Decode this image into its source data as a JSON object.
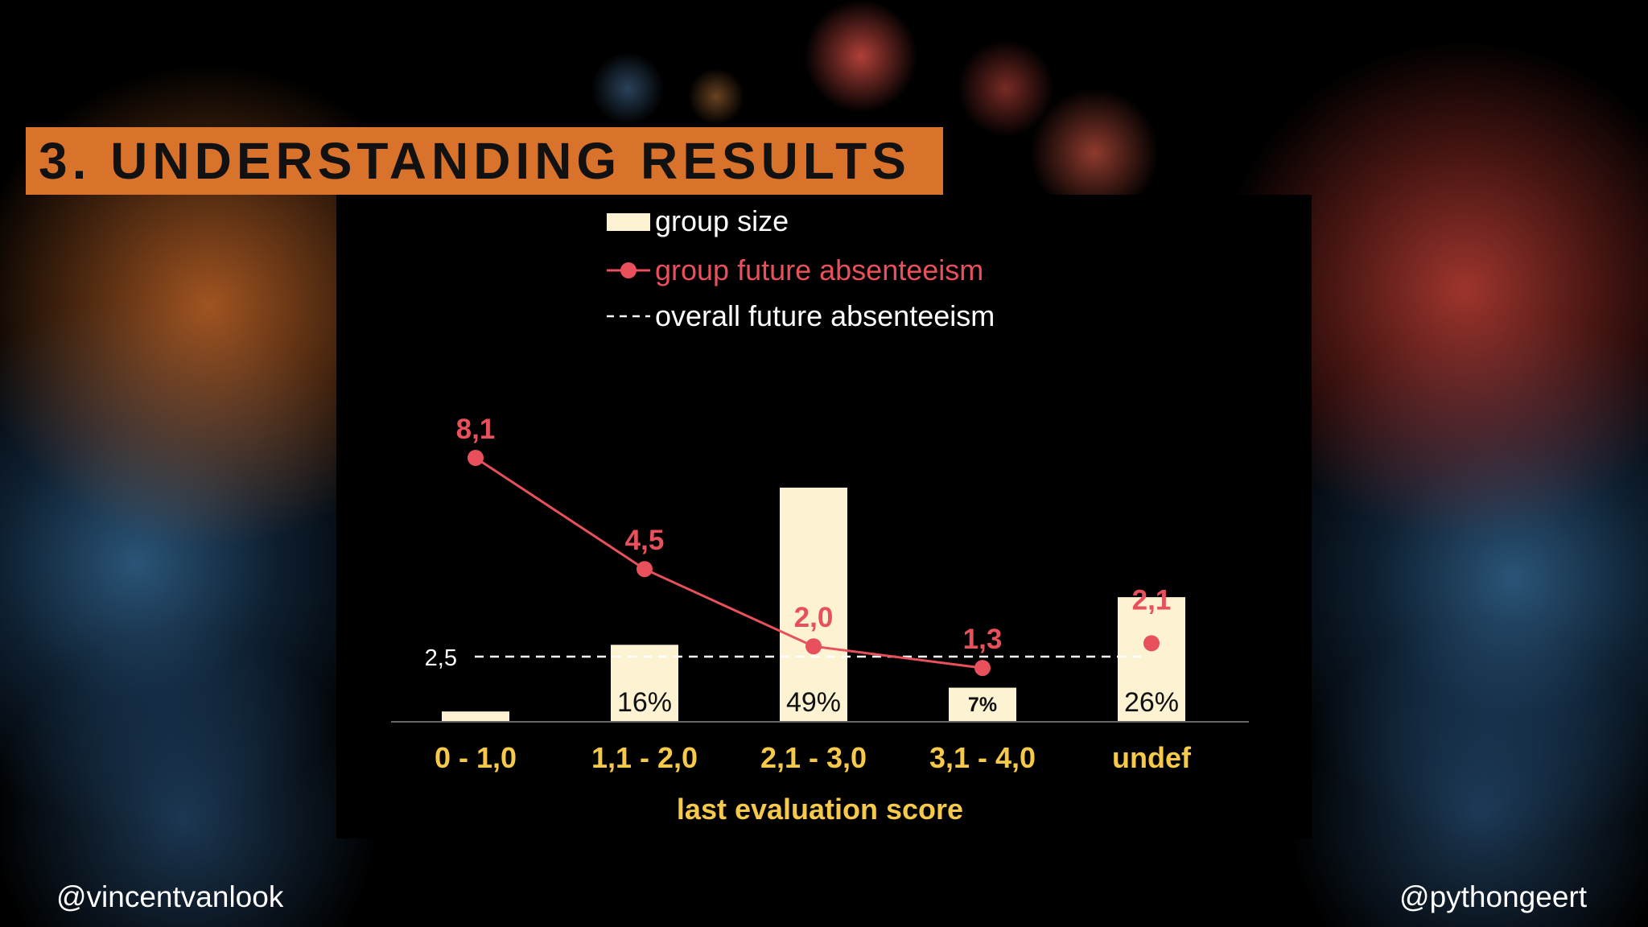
{
  "slide": {
    "title": "3. UNDERSTANDING RESULTS",
    "handle_left": "@vincentvanlook",
    "handle_right": "@pythongeert"
  },
  "colors": {
    "title_bg": "#d9722a",
    "bar": "#fdf3d2",
    "line": "#e8505b",
    "axis_text": "#f6c94a",
    "reference": "#ffffff"
  },
  "chart_data": {
    "type": "bar",
    "xlabel": "last evaluation score",
    "categories": [
      "0 - 1,0",
      "1,1 - 2,0",
      "2,1 - 3,0",
      "3,1 - 4,0",
      "undef"
    ],
    "series": [
      {
        "name": "group size",
        "type": "bar",
        "values": [
          0.02,
          0.16,
          0.49,
          0.07,
          0.26
        ],
        "labels": [
          "",
          "16%",
          "49%",
          "7%",
          "26%"
        ]
      },
      {
        "name": "group future absenteeism",
        "type": "line",
        "values": [
          8.1,
          4.5,
          2.0,
          1.3,
          2.1
        ],
        "labels": [
          "8,1",
          "4,5",
          "2,0",
          "1,3",
          "2,1"
        ],
        "connected": [
          true,
          true,
          true,
          true,
          false
        ]
      }
    ],
    "reference_line": {
      "name": "overall future absenteeism",
      "value": 2.5,
      "label": "2,5",
      "style": "dashed"
    },
    "legend": [
      "group size",
      "group future absenteeism",
      "overall future absenteeism"
    ],
    "legend_position": "top-center",
    "grid": false
  }
}
